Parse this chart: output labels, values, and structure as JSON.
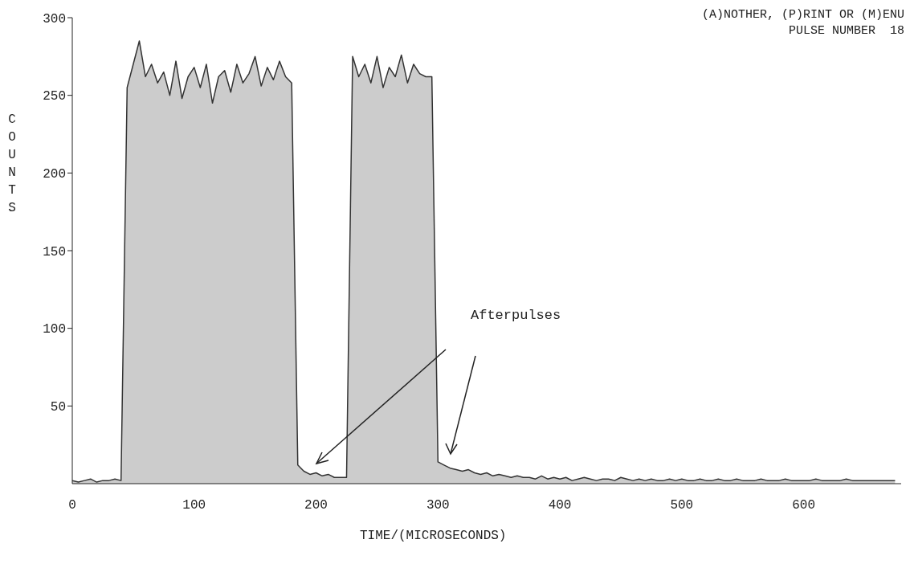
{
  "chart_data": {
    "type": "area",
    "xlabel": "TIME/(MICROSECONDS)",
    "ylabel": "COUNTS",
    "color": "#333333",
    "annotations": [
      "(A)NOTHER, (P)RINT OR (M)ENU",
      "PULSE NUMBER  18",
      "Afterpulses"
    ],
    "xlim": [
      0,
      680
    ],
    "xticks": [
      0,
      100,
      200,
      300,
      400,
      500,
      600
    ],
    "ylim": [
      0,
      300
    ],
    "yticks": [
      50,
      100,
      150,
      200,
      250,
      300
    ],
    "x": [
      0,
      5,
      10,
      15,
      20,
      25,
      30,
      35,
      40,
      45,
      50,
      55,
      60,
      65,
      70,
      75,
      80,
      85,
      90,
      95,
      100,
      105,
      110,
      115,
      120,
      125,
      130,
      135,
      140,
      145,
      150,
      155,
      160,
      165,
      170,
      175,
      180,
      185,
      190,
      195,
      200,
      205,
      210,
      215,
      220,
      225,
      230,
      235,
      240,
      245,
      250,
      255,
      260,
      265,
      270,
      275,
      280,
      285,
      290,
      295,
      300,
      305,
      310,
      315,
      320,
      325,
      330,
      335,
      340,
      345,
      350,
      355,
      360,
      365,
      370,
      375,
      380,
      385,
      390,
      395,
      400,
      405,
      410,
      415,
      420,
      425,
      430,
      435,
      440,
      445,
      450,
      455,
      460,
      465,
      470,
      475,
      480,
      485,
      490,
      495,
      500,
      505,
      510,
      515,
      520,
      525,
      530,
      535,
      540,
      545,
      550,
      555,
      560,
      565,
      570,
      575,
      580,
      585,
      590,
      595,
      600,
      605,
      610,
      615,
      620,
      625,
      630,
      635,
      640,
      645,
      650,
      655,
      660,
      665,
      670,
      675
    ],
    "values": [
      2,
      1,
      2,
      3,
      1,
      2,
      2,
      3,
      2,
      255,
      270,
      285,
      262,
      270,
      258,
      265,
      250,
      272,
      248,
      262,
      268,
      255,
      270,
      245,
      262,
      266,
      252,
      270,
      258,
      264,
      275,
      256,
      268,
      260,
      272,
      262,
      258,
      12,
      8,
      6,
      7,
      5,
      6,
      4,
      4,
      4,
      275,
      262,
      270,
      258,
      275,
      255,
      268,
      262,
      276,
      258,
      270,
      264,
      262,
      262,
      14,
      12,
      10,
      9,
      8,
      9,
      7,
      6,
      7,
      5,
      6,
      5,
      4,
      5,
      4,
      4,
      3,
      5,
      3,
      4,
      3,
      4,
      2,
      3,
      4,
      3,
      2,
      3,
      3,
      2,
      4,
      3,
      2,
      3,
      2,
      3,
      2,
      2,
      3,
      2,
      3,
      2,
      2,
      3,
      2,
      2,
      3,
      2,
      2,
      3,
      2,
      2,
      2,
      3,
      2,
      2,
      2,
      3,
      2,
      2,
      2,
      2,
      3,
      2,
      2,
      2,
      2,
      3,
      2,
      2,
      2,
      2,
      2,
      2,
      2,
      2
    ]
  }
}
